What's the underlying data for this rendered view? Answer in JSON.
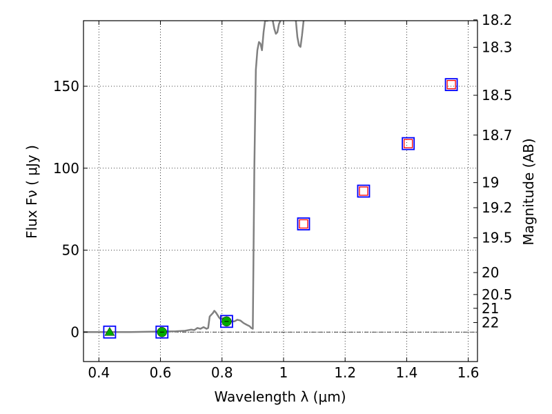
{
  "chart_data": {
    "type": "scatter",
    "title": "",
    "xlabel": "Wavelength  λ (μm)",
    "ylabel": "Flux  Fν  ( μJy )",
    "y2label": "Magnitude (AB)",
    "xlim": [
      0.35,
      1.63
    ],
    "ylim": [
      -18,
      190
    ],
    "grid": true,
    "x_ticks": [
      0.4,
      0.6,
      0.8,
      1.0,
      1.2,
      1.4,
      1.6
    ],
    "x_tick_labels": [
      "0.4",
      "0.6",
      "0.8",
      "1",
      "1.2",
      "1.4",
      "1.6"
    ],
    "y_ticks": [
      0,
      50,
      100,
      150
    ],
    "y_tick_labels": [
      "0",
      "50",
      "100",
      "150"
    ],
    "mag_ticks": [
      {
        "label": "18.2",
        "flux": 190.5
      },
      {
        "label": "18.3",
        "flux": 173.8
      },
      {
        "label": "18.5",
        "flux": 144.5
      },
      {
        "label": "18.7",
        "flux": 120.2
      },
      {
        "label": "19",
        "flux": 91.2
      },
      {
        "label": "19.2",
        "flux": 75.9
      },
      {
        "label": "19.5",
        "flux": 57.5
      },
      {
        "label": "20",
        "flux": 36.3
      },
      {
        "label": "20.5",
        "flux": 22.9
      },
      {
        "label": "21",
        "flux": 14.5
      },
      {
        "label": "22",
        "flux": 5.8
      }
    ],
    "reference_line": {
      "y": 0,
      "style": "dash-dot"
    },
    "series": [
      {
        "name": "model-spectrum",
        "kind": "line",
        "color": "#808080",
        "x": [
          0.35,
          0.5,
          0.65,
          0.68,
          0.7,
          0.71,
          0.72,
          0.73,
          0.74,
          0.75,
          0.755,
          0.76,
          0.765,
          0.77,
          0.775,
          0.78,
          0.785,
          0.79,
          0.795,
          0.8,
          0.81,
          0.82,
          0.83,
          0.84,
          0.85,
          0.86,
          0.87,
          0.88,
          0.89,
          0.895,
          0.9,
          0.905,
          0.91,
          0.915,
          0.92,
          0.925,
          0.93,
          0.935,
          0.94,
          0.945,
          0.95
        ],
        "y": [
          0,
          0,
          0.5,
          0.8,
          1.5,
          1.2,
          2.5,
          2.0,
          3.0,
          2.0,
          2.5,
          9.5,
          10.5,
          11.5,
          13.0,
          12.0,
          10.5,
          9.0,
          8.0,
          8.5,
          8.5,
          7.5,
          6.5,
          6.5,
          7.5,
          7.0,
          5.5,
          4.5,
          3.5,
          2.5,
          2.0,
          100,
          160,
          172,
          177,
          176,
          172,
          183,
          190,
          190,
          190
        ]
      },
      {
        "name": "model-spectrum-tail",
        "kind": "line",
        "color": "#808080",
        "x": [
          0.965,
          0.97,
          0.975,
          0.98,
          0.985,
          0.99
        ],
        "y": [
          190,
          185,
          182,
          183,
          188,
          190
        ]
      },
      {
        "name": "model-spectrum-tail-2",
        "kind": "line",
        "color": "#808080",
        "x": [
          1.04,
          1.045,
          1.05,
          1.055,
          1.06,
          1.065
        ],
        "y": [
          190,
          180,
          175,
          174,
          181,
          190
        ]
      },
      {
        "name": "observed-fluxes",
        "kind": "marker",
        "marker": "green",
        "points": [
          {
            "x": 0.435,
            "y": 0,
            "shape": "triangle"
          },
          {
            "x": 0.605,
            "y": 0,
            "shape": "circle"
          },
          {
            "x": 0.815,
            "y": 6.5,
            "shape": "circle"
          }
        ]
      },
      {
        "name": "model-bandpass-fluxes",
        "kind": "marker",
        "marker": "blue-square",
        "points": [
          {
            "x": 0.435,
            "y": 0
          },
          {
            "x": 0.605,
            "y": 0
          },
          {
            "x": 0.815,
            "y": 6.5
          },
          {
            "x": 1.065,
            "y": 66
          },
          {
            "x": 1.26,
            "y": 86
          },
          {
            "x": 1.405,
            "y": 115
          },
          {
            "x": 1.545,
            "y": 151
          }
        ]
      },
      {
        "name": "upper-limit-fluxes",
        "kind": "marker",
        "marker": "red-square",
        "points": [
          {
            "x": 1.065,
            "y": 66
          },
          {
            "x": 1.26,
            "y": 86
          },
          {
            "x": 1.405,
            "y": 115
          },
          {
            "x": 1.545,
            "y": 151
          }
        ]
      }
    ],
    "colors": {
      "spectrum": "#808080",
      "observed": "#00aa00",
      "model_box": "#0000ff",
      "limit_box": "#ff0000"
    }
  }
}
